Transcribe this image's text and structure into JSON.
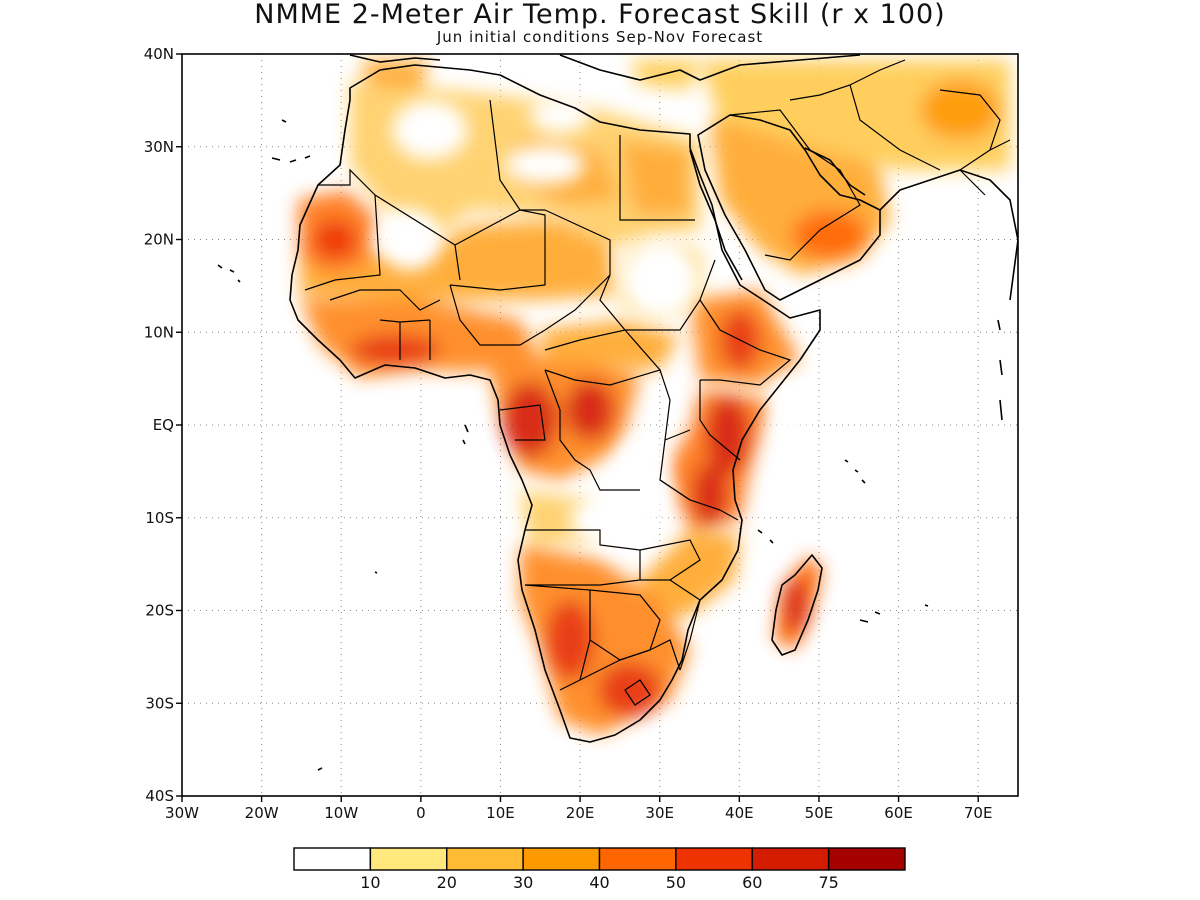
{
  "title": "NMME 2-Meter Air Temp. Forecast Skill (r x 100)",
  "subtitle": "Jun initial conditions  Sep-Nov Forecast",
  "map": {
    "lon_range": [
      -30,
      75
    ],
    "lat_range": [
      -40,
      40
    ],
    "grid": "on (dotted)",
    "lat_ticks": [
      {
        "value": 40,
        "label": "40N"
      },
      {
        "value": 30,
        "label": "30N"
      },
      {
        "value": 20,
        "label": "20N"
      },
      {
        "value": 10,
        "label": "10N"
      },
      {
        "value": 0,
        "label": "EQ"
      },
      {
        "value": -10,
        "label": "10S"
      },
      {
        "value": -20,
        "label": "20S"
      },
      {
        "value": -30,
        "label": "30S"
      },
      {
        "value": -40,
        "label": "40S"
      }
    ],
    "lon_ticks": [
      {
        "value": -30,
        "label": "30W"
      },
      {
        "value": -20,
        "label": "20W"
      },
      {
        "value": -10,
        "label": "10W"
      },
      {
        "value": 0,
        "label": "0"
      },
      {
        "value": 10,
        "label": "10E"
      },
      {
        "value": 20,
        "label": "20E"
      },
      {
        "value": 30,
        "label": "30E"
      },
      {
        "value": 40,
        "label": "40E"
      },
      {
        "value": 50,
        "label": "50E"
      },
      {
        "value": 60,
        "label": "60E"
      },
      {
        "value": 70,
        "label": "70E"
      }
    ],
    "skill_regions": [
      {
        "region": "Mauritania / Western Sahara",
        "lon": -12,
        "lat": 20,
        "level": 5
      },
      {
        "region": "Gulf of Guinea coast",
        "lon": -2,
        "lat": 7,
        "level": 5
      },
      {
        "region": "Congo Basin west",
        "lon": 13,
        "lat": 0,
        "level": 6
      },
      {
        "region": "Congo Basin central",
        "lon": 21,
        "lat": 1,
        "level": 6
      },
      {
        "region": "Ethiopian highlands",
        "lon": 38,
        "lat": 10,
        "level": 5
      },
      {
        "region": "Kenya / Tanzania coast",
        "lon": 38,
        "lat": -3,
        "level": 6
      },
      {
        "region": "Tanzania south-east",
        "lon": 36,
        "lat": -8,
        "level": 6
      },
      {
        "region": "Madagascar",
        "lon": 47,
        "lat": -20,
        "level": 5
      },
      {
        "region": "Botswana / Namibia",
        "lon": 19,
        "lat": -24,
        "level": 5
      },
      {
        "region": "South Africa highveld",
        "lon": 27,
        "lat": -28,
        "level": 5
      },
      {
        "region": "Arabian Peninsula",
        "lon": 45,
        "lat": 22,
        "level": 4
      },
      {
        "region": "Sahel",
        "lon": 8,
        "lat": 14,
        "level": 3
      },
      {
        "region": "Libya / Egypt",
        "lon": 25,
        "lat": 26,
        "level": 2
      }
    ]
  },
  "colorbar": {
    "colors": [
      "#ffffff",
      "#ffe87c",
      "#ffbb33",
      "#ff9900",
      "#ff6600",
      "#ee3300",
      "#d41c00",
      "#a50000"
    ],
    "labels": [
      "10",
      "20",
      "30",
      "40",
      "50",
      "60",
      "75"
    ]
  }
}
